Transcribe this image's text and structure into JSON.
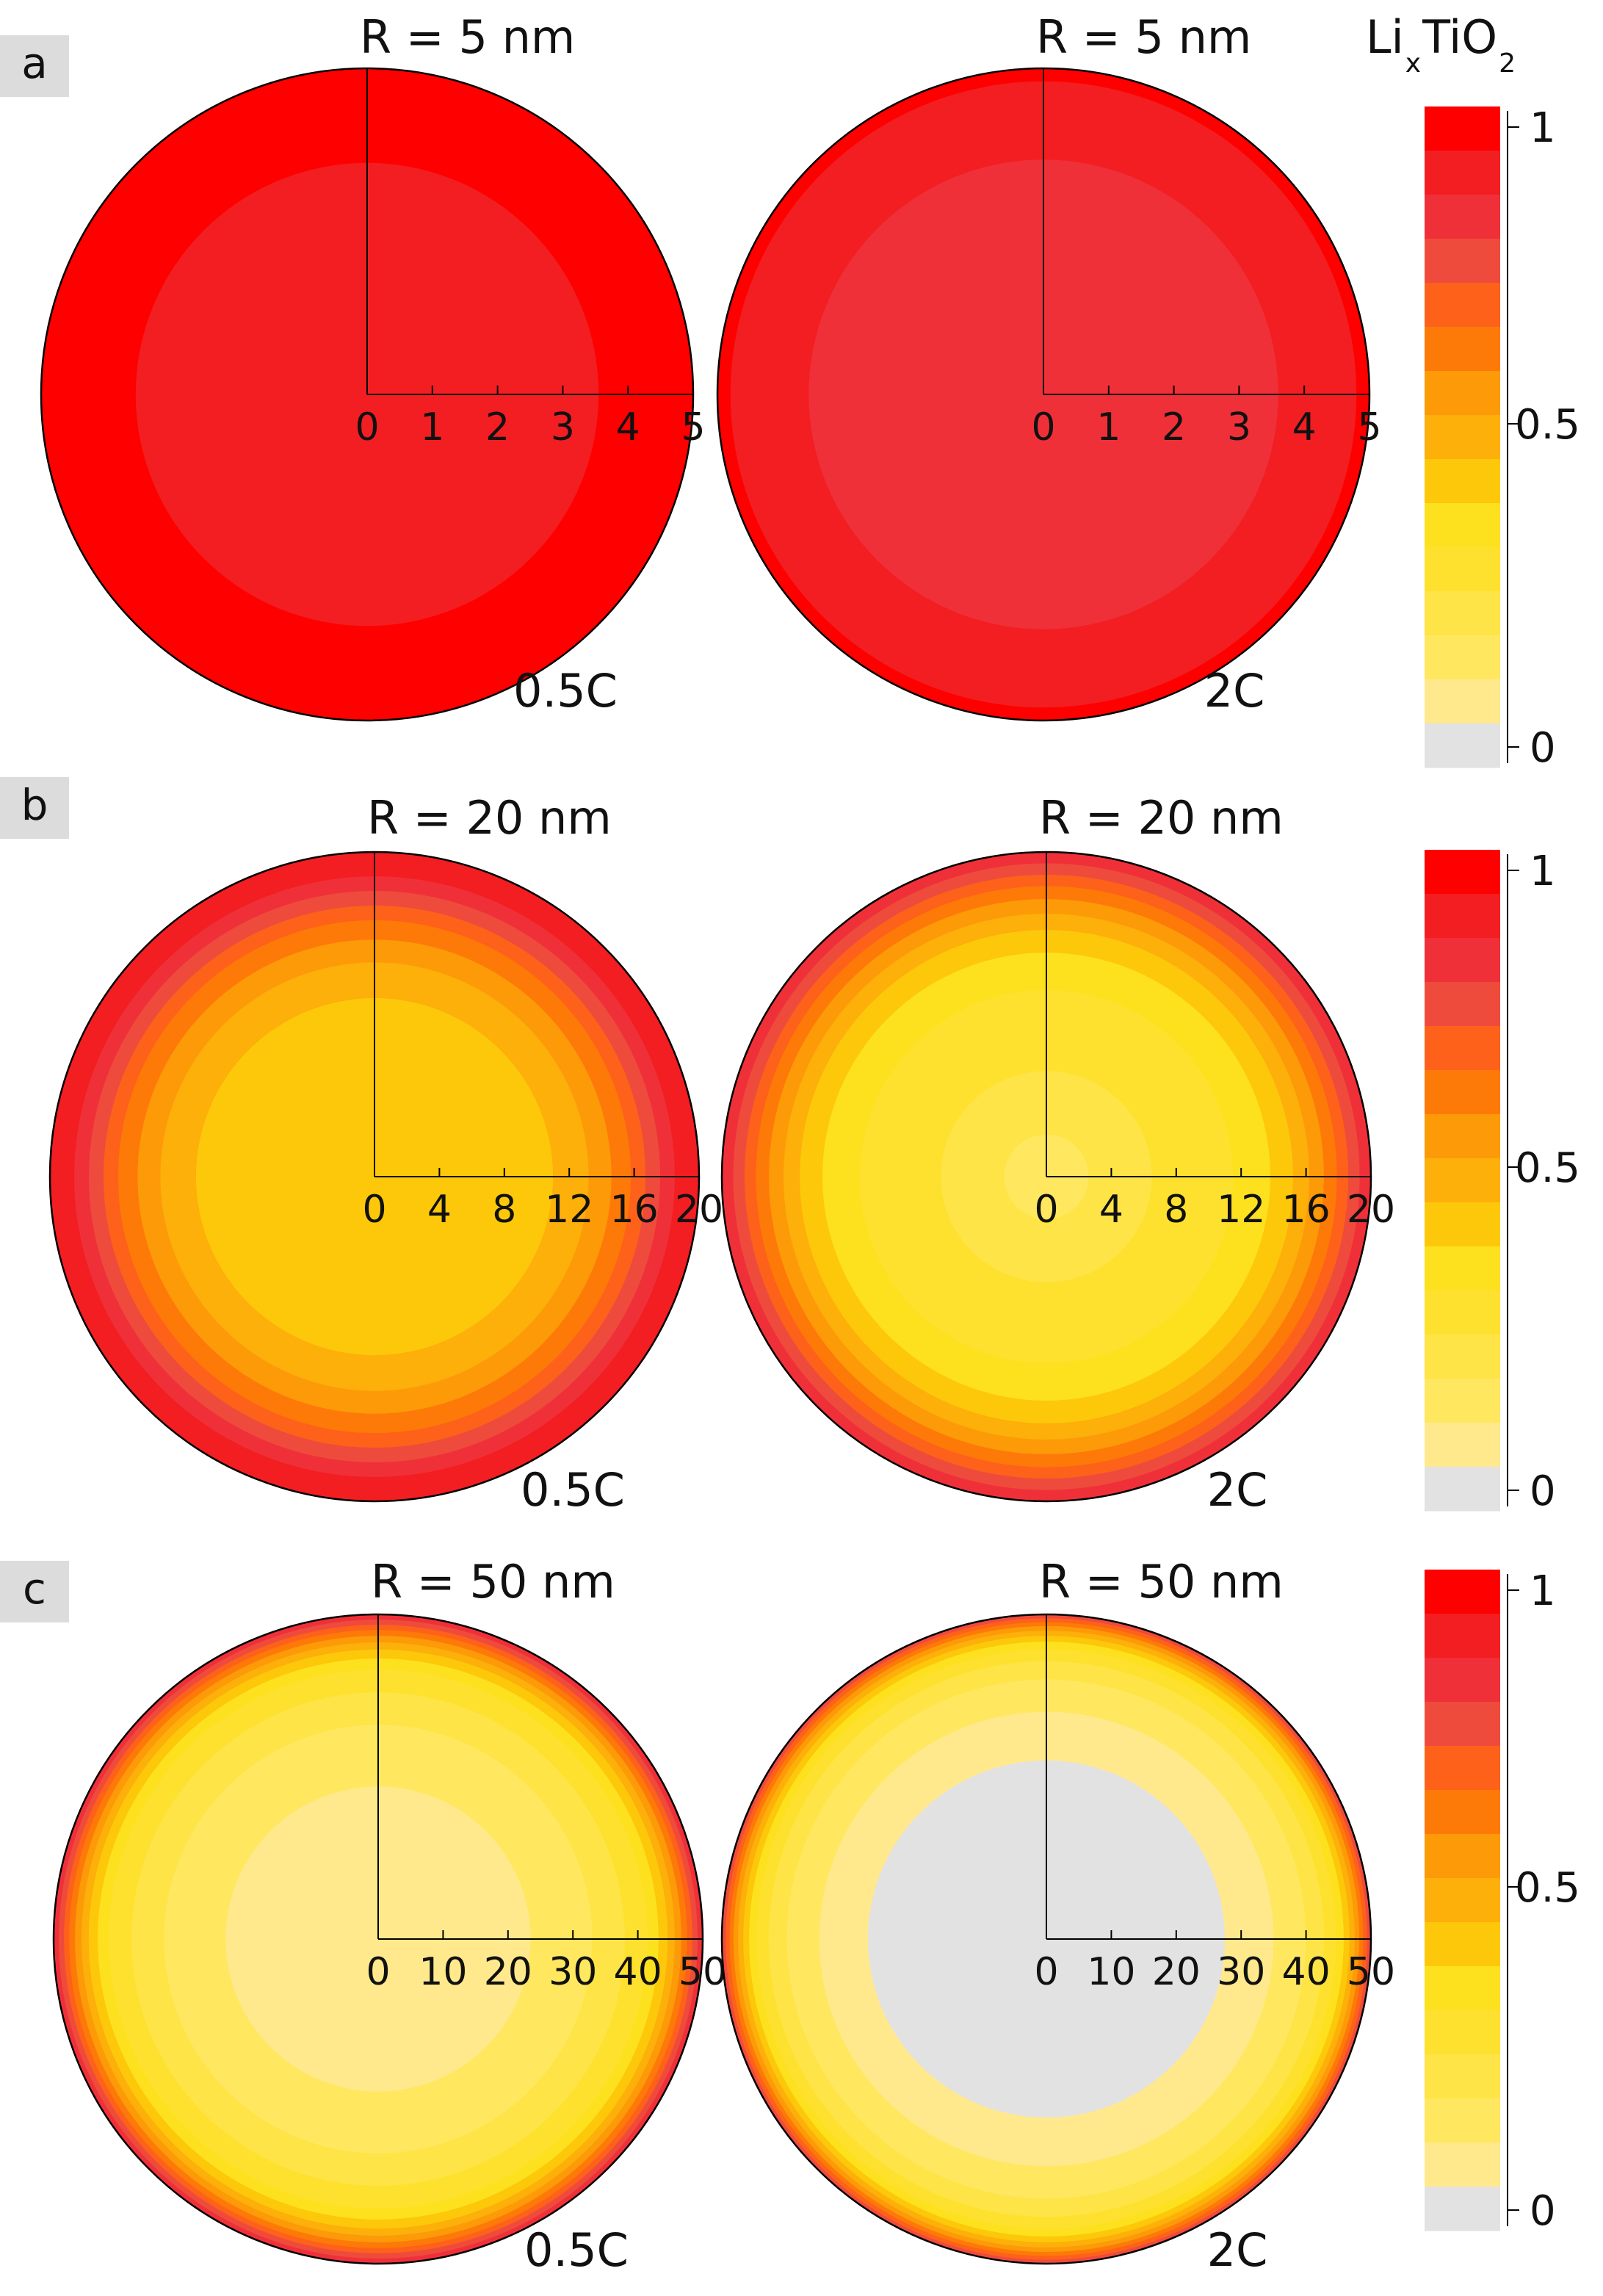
{
  "figure": {
    "colorbar_title_main": "Li",
    "colorbar_title_x": "x",
    "colorbar_title_ti": "TiO",
    "colorbar_title_sub": "2",
    "colorbar_ticks": [
      "1",
      "0.5",
      "0"
    ],
    "colorbar_colors": [
      "#fe0000",
      "#f21e22",
      "#f03038",
      "#ee4b3d",
      "#fe6119",
      "#fe7a08",
      "#fd9a08",
      "#fdaf0a",
      "#fdc80a",
      "#fde11f",
      "#fee12e",
      "#fee446",
      "#ffe760",
      "#ffe98c",
      "#e2e2e2"
    ],
    "panels": [
      {
        "label": "a",
        "colorbar_title": "LixTiO2",
        "charts": [
          {
            "title": "R = 5 nm",
            "rate": "0.5C",
            "ticks": [
              "0",
              "1",
              "2",
              "3",
              "4",
              "5"
            ],
            "rings": [
              {
                "r": 5,
                "level": 0
              },
              {
                "r": 3.55,
                "level": 1
              }
            ]
          },
          {
            "title": "R = 5 nm",
            "rate": "2C",
            "ticks": [
              "0",
              "1",
              "2",
              "3",
              "4",
              "5"
            ],
            "rings": [
              {
                "r": 5,
                "level": 0
              },
              {
                "r": 4.8,
                "level": 1
              },
              {
                "r": 3.6,
                "level": 2
              },
              {
                "r": 2.2,
                "level": 2
              }
            ]
          }
        ]
      },
      {
        "label": "b",
        "charts": [
          {
            "title": "R = 20 nm",
            "rate": "0.5C",
            "ticks": [
              "0",
              "4",
              "8",
              "12",
              "16",
              "20"
            ],
            "rings": [
              {
                "r": 20,
                "level": 1
              },
              {
                "r": 18.5,
                "level": 2
              },
              {
                "r": 17.6,
                "level": 3
              },
              {
                "r": 16.7,
                "level": 4
              },
              {
                "r": 15.8,
                "level": 5
              },
              {
                "r": 14.6,
                "level": 6
              },
              {
                "r": 13.2,
                "level": 7
              },
              {
                "r": 11,
                "level": 8
              }
            ]
          },
          {
            "title": "R = 20 nm",
            "rate": "2C",
            "ticks": [
              "0",
              "4",
              "8",
              "12",
              "16",
              "20"
            ],
            "rings": [
              {
                "r": 20,
                "level": 2
              },
              {
                "r": 19.3,
                "level": 3
              },
              {
                "r": 18.6,
                "level": 4
              },
              {
                "r": 17.9,
                "level": 5
              },
              {
                "r": 17.1,
                "level": 6
              },
              {
                "r": 16.2,
                "level": 7
              },
              {
                "r": 15.2,
                "level": 8
              },
              {
                "r": 13.8,
                "level": 9
              },
              {
                "r": 11.5,
                "level": 10
              },
              {
                "r": 6.5,
                "level": 11
              },
              {
                "r": 2.6,
                "level": 12
              }
            ]
          }
        ]
      },
      {
        "label": "c",
        "charts": [
          {
            "title": "R = 50 nm",
            "rate": "0.5C",
            "ticks": [
              "0",
              "10",
              "20",
              "30",
              "40",
              "50"
            ],
            "rings": [
              {
                "r": 50,
                "level": 2
              },
              {
                "r": 49.2,
                "level": 3
              },
              {
                "r": 48.4,
                "level": 4
              },
              {
                "r": 47.6,
                "level": 5
              },
              {
                "r": 46.7,
                "level": 6
              },
              {
                "r": 45.7,
                "level": 7
              },
              {
                "r": 44.6,
                "level": 8
              },
              {
                "r": 43.2,
                "level": 9
              },
              {
                "r": 41.5,
                "level": 10
              },
              {
                "r": 38,
                "level": 11
              },
              {
                "r": 33,
                "level": 12
              },
              {
                "r": 23.5,
                "level": 13
              }
            ]
          },
          {
            "title": "R = 50 nm",
            "rate": "2C",
            "ticks": [
              "0",
              "10",
              "20",
              "30",
              "40",
              "50"
            ],
            "rings": [
              {
                "r": 50,
                "level": 3
              },
              {
                "r": 49.4,
                "level": 4
              },
              {
                "r": 48.8,
                "level": 5
              },
              {
                "r": 48.2,
                "level": 6
              },
              {
                "r": 47.5,
                "level": 7
              },
              {
                "r": 46.7,
                "level": 8
              },
              {
                "r": 45.8,
                "level": 9
              },
              {
                "r": 44.6,
                "level": 10
              },
              {
                "r": 42.8,
                "level": 11
              },
              {
                "r": 40,
                "level": 12
              },
              {
                "r": 35,
                "level": 13
              },
              {
                "r": 27.5,
                "level": 14
              }
            ]
          }
        ]
      }
    ]
  },
  "chart_data": [
    {
      "type": "heatmap",
      "title": "R = 5 nm",
      "annotation": "0.5C",
      "xlim": [
        0,
        5
      ],
      "x_ticks": [
        0,
        1,
        2,
        3,
        4,
        5
      ],
      "colorbar_label": "LixTiO2",
      "colorbar_range": [
        0,
        1
      ],
      "radial_profile": [
        {
          "r_from": 0,
          "r_to": 3.55,
          "value": 0.93
        },
        {
          "r_from": 3.55,
          "r_to": 5,
          "value": 1.0
        }
      ]
    },
    {
      "type": "heatmap",
      "title": "R = 5 nm",
      "annotation": "2C",
      "xlim": [
        0,
        5
      ],
      "x_ticks": [
        0,
        1,
        2,
        3,
        4,
        5
      ],
      "colorbar_label": "LixTiO2",
      "colorbar_range": [
        0,
        1
      ],
      "radial_profile": [
        {
          "r_from": 0,
          "r_to": 3.6,
          "value": 0.87
        },
        {
          "r_from": 3.6,
          "r_to": 4.8,
          "value": 0.93
        },
        {
          "r_from": 4.8,
          "r_to": 5,
          "value": 1.0
        }
      ]
    },
    {
      "type": "heatmap",
      "title": "R = 20 nm",
      "annotation": "0.5C",
      "xlim": [
        0,
        20
      ],
      "x_ticks": [
        0,
        4,
        8,
        12,
        16,
        20
      ],
      "colorbar_label": "LixTiO2",
      "colorbar_range": [
        0,
        1
      ],
      "radial_profile": [
        {
          "r_from": 0,
          "r_to": 11,
          "value": 0.47
        },
        {
          "r_from": 11,
          "r_to": 13.2,
          "value": 0.53
        },
        {
          "r_from": 13.2,
          "r_to": 14.6,
          "value": 0.6
        },
        {
          "r_from": 14.6,
          "r_to": 15.8,
          "value": 0.67
        },
        {
          "r_from": 15.8,
          "r_to": 16.7,
          "value": 0.73
        },
        {
          "r_from": 16.7,
          "r_to": 17.6,
          "value": 0.8
        },
        {
          "r_from": 17.6,
          "r_to": 18.5,
          "value": 0.87
        },
        {
          "r_from": 18.5,
          "r_to": 20,
          "value": 0.93
        }
      ]
    },
    {
      "type": "heatmap",
      "title": "R = 20 nm",
      "annotation": "2C",
      "xlim": [
        0,
        20
      ],
      "x_ticks": [
        0,
        4,
        8,
        12,
        16,
        20
      ],
      "colorbar_label": "LixTiO2",
      "colorbar_range": [
        0,
        1
      ],
      "radial_profile": [
        {
          "r_from": 0,
          "r_to": 2.6,
          "value": 0.2
        },
        {
          "r_from": 2.6,
          "r_to": 6.5,
          "value": 0.27
        },
        {
          "r_from": 6.5,
          "r_to": 11.5,
          "value": 0.33
        },
        {
          "r_from": 11.5,
          "r_to": 13.8,
          "value": 0.4
        },
        {
          "r_from": 13.8,
          "r_to": 15.2,
          "value": 0.47
        },
        {
          "r_from": 15.2,
          "r_to": 16.2,
          "value": 0.53
        },
        {
          "r_from": 16.2,
          "r_to": 17.1,
          "value": 0.6
        },
        {
          "r_from": 17.1,
          "r_to": 17.9,
          "value": 0.67
        },
        {
          "r_from": 17.9,
          "r_to": 18.6,
          "value": 0.73
        },
        {
          "r_from": 18.6,
          "r_to": 19.3,
          "value": 0.8
        },
        {
          "r_from": 19.3,
          "r_to": 20,
          "value": 0.87
        }
      ]
    },
    {
      "type": "heatmap",
      "title": "R = 50 nm",
      "annotation": "0.5C",
      "xlim": [
        0,
        50
      ],
      "x_ticks": [
        0,
        10,
        20,
        30,
        40,
        50
      ],
      "colorbar_label": "LixTiO2",
      "colorbar_range": [
        0,
        1
      ],
      "radial_profile": [
        {
          "r_from": 0,
          "r_to": 23.5,
          "value": 0.13
        },
        {
          "r_from": 23.5,
          "r_to": 33,
          "value": 0.2
        },
        {
          "r_from": 33,
          "r_to": 38,
          "value": 0.27
        },
        {
          "r_from": 38,
          "r_to": 41.5,
          "value": 0.33
        },
        {
          "r_from": 41.5,
          "r_to": 43.2,
          "value": 0.4
        },
        {
          "r_from": 43.2,
          "r_to": 44.6,
          "value": 0.47
        },
        {
          "r_from": 44.6,
          "r_to": 45.7,
          "value": 0.53
        },
        {
          "r_from": 45.7,
          "r_to": 46.7,
          "value": 0.6
        },
        {
          "r_from": 46.7,
          "r_to": 47.6,
          "value": 0.67
        },
        {
          "r_from": 47.6,
          "r_to": 48.4,
          "value": 0.73
        },
        {
          "r_from": 48.4,
          "r_to": 49.2,
          "value": 0.8
        },
        {
          "r_from": 49.2,
          "r_to": 50,
          "value": 0.87
        }
      ]
    },
    {
      "type": "heatmap",
      "title": "R = 50 nm",
      "annotation": "2C",
      "xlim": [
        0,
        50
      ],
      "x_ticks": [
        0,
        10,
        20,
        30,
        40,
        50
      ],
      "colorbar_label": "LixTiO2",
      "colorbar_range": [
        0,
        1
      ],
      "radial_profile": [
        {
          "r_from": 0,
          "r_to": 27.5,
          "value": 0.0
        },
        {
          "r_from": 27.5,
          "r_to": 35,
          "value": 0.13
        },
        {
          "r_from": 35,
          "r_to": 40,
          "value": 0.2
        },
        {
          "r_from": 40,
          "r_to": 42.8,
          "value": 0.27
        },
        {
          "r_from": 42.8,
          "r_to": 44.6,
          "value": 0.33
        },
        {
          "r_from": 44.6,
          "r_to": 45.8,
          "value": 0.4
        },
        {
          "r_from": 45.8,
          "r_to": 46.7,
          "value": 0.47
        },
        {
          "r_from": 46.7,
          "r_to": 47.5,
          "value": 0.53
        },
        {
          "r_from": 47.5,
          "r_to": 48.2,
          "value": 0.6
        },
        {
          "r_from": 48.2,
          "r_to": 48.8,
          "value": 0.67
        },
        {
          "r_from": 48.8,
          "r_to": 49.4,
          "value": 0.73
        },
        {
          "r_from": 49.4,
          "r_to": 50,
          "value": 0.8
        }
      ]
    }
  ]
}
